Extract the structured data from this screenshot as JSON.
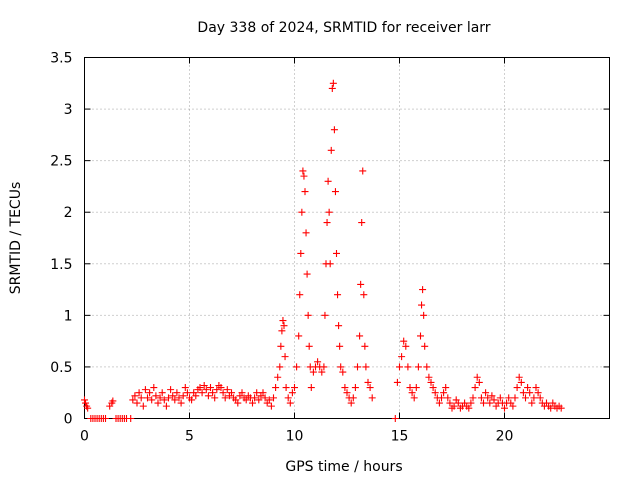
{
  "chart_data": {
    "type": "scatter",
    "title": "Day 338 of 2024, SRMTID for receiver larr",
    "xlabel": "GPS time / hours",
    "ylabel": "SRMTID / TECUs",
    "xlim": [
      0,
      25
    ],
    "ylim": [
      0,
      3.5
    ],
    "xticks": [
      0,
      5,
      10,
      15,
      20
    ],
    "yticks": [
      0,
      0.5,
      1,
      1.5,
      2,
      2.5,
      3,
      3.5
    ],
    "xtick_labels": [
      "0",
      "5",
      "10",
      "15",
      "20"
    ],
    "ytick_labels": [
      "0",
      "0.5",
      "1",
      "1.5",
      "2",
      "2.5",
      "3",
      "3.5"
    ],
    "grid": true,
    "marker": "+",
    "color": "#ff0000",
    "series": [
      {
        "name": "SRMTID",
        "points": [
          [
            0.0,
            0.18
          ],
          [
            0.05,
            0.15
          ],
          [
            0.1,
            0.12
          ],
          [
            0.15,
            0.1
          ],
          [
            0.3,
            0.0
          ],
          [
            0.4,
            0.0
          ],
          [
            0.5,
            0.0
          ],
          [
            0.6,
            0.0
          ],
          [
            0.7,
            0.0
          ],
          [
            0.8,
            0.0
          ],
          [
            0.9,
            0.0
          ],
          [
            1.0,
            0.0
          ],
          [
            1.2,
            0.12
          ],
          [
            1.3,
            0.15
          ],
          [
            1.35,
            0.17
          ],
          [
            1.5,
            0.0
          ],
          [
            1.6,
            0.0
          ],
          [
            1.7,
            0.0
          ],
          [
            1.8,
            0.0
          ],
          [
            1.9,
            0.0
          ],
          [
            2.0,
            0.0
          ],
          [
            2.2,
            0.0
          ],
          [
            2.3,
            0.18
          ],
          [
            2.4,
            0.22
          ],
          [
            2.5,
            0.15
          ],
          [
            2.6,
            0.25
          ],
          [
            2.7,
            0.2
          ],
          [
            2.8,
            0.12
          ],
          [
            2.9,
            0.28
          ],
          [
            3.0,
            0.2
          ],
          [
            3.1,
            0.25
          ],
          [
            3.2,
            0.18
          ],
          [
            3.3,
            0.3
          ],
          [
            3.4,
            0.22
          ],
          [
            3.5,
            0.15
          ],
          [
            3.6,
            0.2
          ],
          [
            3.7,
            0.25
          ],
          [
            3.8,
            0.18
          ],
          [
            3.9,
            0.12
          ],
          [
            4.0,
            0.2
          ],
          [
            4.1,
            0.28
          ],
          [
            4.2,
            0.22
          ],
          [
            4.3,
            0.18
          ],
          [
            4.4,
            0.25
          ],
          [
            4.5,
            0.2
          ],
          [
            4.6,
            0.15
          ],
          [
            4.7,
            0.22
          ],
          [
            4.8,
            0.3
          ],
          [
            4.9,
            0.25
          ],
          [
            5.0,
            0.2
          ],
          [
            5.1,
            0.18
          ],
          [
            5.2,
            0.25
          ],
          [
            5.3,
            0.22
          ],
          [
            5.4,
            0.28
          ],
          [
            5.5,
            0.3
          ],
          [
            5.6,
            0.25
          ],
          [
            5.7,
            0.32
          ],
          [
            5.8,
            0.28
          ],
          [
            5.9,
            0.22
          ],
          [
            6.0,
            0.3
          ],
          [
            6.1,
            0.25
          ],
          [
            6.2,
            0.2
          ],
          [
            6.3,
            0.28
          ],
          [
            6.4,
            0.32
          ],
          [
            6.5,
            0.3
          ],
          [
            6.6,
            0.25
          ],
          [
            6.7,
            0.2
          ],
          [
            6.8,
            0.28
          ],
          [
            6.9,
            0.22
          ],
          [
            7.0,
            0.25
          ],
          [
            7.1,
            0.2
          ],
          [
            7.2,
            0.18
          ],
          [
            7.3,
            0.15
          ],
          [
            7.4,
            0.22
          ],
          [
            7.5,
            0.25
          ],
          [
            7.6,
            0.2
          ],
          [
            7.7,
            0.18
          ],
          [
            7.8,
            0.22
          ],
          [
            7.9,
            0.2
          ],
          [
            8.0,
            0.15
          ],
          [
            8.1,
            0.2
          ],
          [
            8.2,
            0.25
          ],
          [
            8.3,
            0.18
          ],
          [
            8.4,
            0.22
          ],
          [
            8.5,
            0.25
          ],
          [
            8.6,
            0.2
          ],
          [
            8.7,
            0.15
          ],
          [
            8.8,
            0.18
          ],
          [
            8.9,
            0.12
          ],
          [
            9.0,
            0.2
          ],
          [
            9.1,
            0.3
          ],
          [
            9.2,
            0.4
          ],
          [
            9.3,
            0.5
          ],
          [
            9.35,
            0.7
          ],
          [
            9.4,
            0.85
          ],
          [
            9.45,
            0.95
          ],
          [
            9.5,
            0.9
          ],
          [
            9.55,
            0.6
          ],
          [
            9.6,
            0.3
          ],
          [
            9.7,
            0.2
          ],
          [
            9.8,
            0.15
          ],
          [
            9.9,
            0.25
          ],
          [
            10.0,
            0.3
          ],
          [
            10.1,
            0.5
          ],
          [
            10.2,
            0.8
          ],
          [
            10.25,
            1.2
          ],
          [
            10.3,
            1.6
          ],
          [
            10.35,
            2.0
          ],
          [
            10.4,
            2.4
          ],
          [
            10.45,
            2.35
          ],
          [
            10.5,
            2.2
          ],
          [
            10.55,
            1.8
          ],
          [
            10.6,
            1.4
          ],
          [
            10.65,
            1.0
          ],
          [
            10.7,
            0.7
          ],
          [
            10.75,
            0.5
          ],
          [
            10.8,
            0.3
          ],
          [
            10.9,
            0.45
          ],
          [
            11.0,
            0.5
          ],
          [
            11.1,
            0.55
          ],
          [
            11.2,
            0.5
          ],
          [
            11.3,
            0.45
          ],
          [
            11.4,
            0.5
          ],
          [
            11.45,
            1.0
          ],
          [
            11.5,
            1.5
          ],
          [
            11.55,
            1.9
          ],
          [
            11.6,
            2.3
          ],
          [
            11.65,
            2.0
          ],
          [
            11.7,
            1.5
          ],
          [
            11.75,
            2.6
          ],
          [
            11.8,
            3.2
          ],
          [
            11.85,
            3.25
          ],
          [
            11.9,
            2.8
          ],
          [
            11.95,
            2.2
          ],
          [
            12.0,
            1.6
          ],
          [
            12.05,
            1.2
          ],
          [
            12.1,
            0.9
          ],
          [
            12.15,
            0.7
          ],
          [
            12.2,
            0.5
          ],
          [
            12.3,
            0.45
          ],
          [
            12.4,
            0.3
          ],
          [
            12.5,
            0.25
          ],
          [
            12.6,
            0.2
          ],
          [
            12.7,
            0.15
          ],
          [
            12.8,
            0.2
          ],
          [
            12.9,
            0.3
          ],
          [
            13.0,
            0.5
          ],
          [
            13.1,
            0.8
          ],
          [
            13.15,
            1.3
          ],
          [
            13.2,
            1.9
          ],
          [
            13.25,
            2.4
          ],
          [
            13.3,
            1.2
          ],
          [
            13.35,
            0.7
          ],
          [
            13.4,
            0.5
          ],
          [
            13.5,
            0.35
          ],
          [
            13.6,
            0.3
          ],
          [
            13.7,
            0.2
          ],
          [
            14.8,
            0.0
          ],
          [
            14.9,
            0.35
          ],
          [
            15.0,
            0.5
          ],
          [
            15.1,
            0.6
          ],
          [
            15.2,
            0.75
          ],
          [
            15.3,
            0.7
          ],
          [
            15.4,
            0.5
          ],
          [
            15.5,
            0.3
          ],
          [
            15.6,
            0.25
          ],
          [
            15.7,
            0.2
          ],
          [
            15.8,
            0.3
          ],
          [
            15.9,
            0.5
          ],
          [
            16.0,
            0.8
          ],
          [
            16.05,
            1.1
          ],
          [
            16.1,
            1.25
          ],
          [
            16.15,
            1.0
          ],
          [
            16.2,
            0.7
          ],
          [
            16.3,
            0.5
          ],
          [
            16.4,
            0.4
          ],
          [
            16.5,
            0.35
          ],
          [
            16.6,
            0.3
          ],
          [
            16.7,
            0.25
          ],
          [
            16.8,
            0.2
          ],
          [
            16.9,
            0.15
          ],
          [
            17.0,
            0.2
          ],
          [
            17.1,
            0.25
          ],
          [
            17.2,
            0.3
          ],
          [
            17.3,
            0.2
          ],
          [
            17.4,
            0.15
          ],
          [
            17.5,
            0.1
          ],
          [
            17.6,
            0.12
          ],
          [
            17.7,
            0.18
          ],
          [
            17.8,
            0.15
          ],
          [
            17.9,
            0.1
          ],
          [
            18.0,
            0.12
          ],
          [
            18.1,
            0.15
          ],
          [
            18.2,
            0.12
          ],
          [
            18.3,
            0.1
          ],
          [
            18.4,
            0.15
          ],
          [
            18.5,
            0.2
          ],
          [
            18.6,
            0.3
          ],
          [
            18.7,
            0.4
          ],
          [
            18.8,
            0.35
          ],
          [
            18.9,
            0.2
          ],
          [
            19.0,
            0.15
          ],
          [
            19.1,
            0.25
          ],
          [
            19.2,
            0.2
          ],
          [
            19.3,
            0.15
          ],
          [
            19.4,
            0.22
          ],
          [
            19.5,
            0.18
          ],
          [
            19.6,
            0.12
          ],
          [
            19.7,
            0.15
          ],
          [
            19.8,
            0.2
          ],
          [
            19.9,
            0.15
          ],
          [
            20.0,
            0.1
          ],
          [
            20.1,
            0.15
          ],
          [
            20.2,
            0.2
          ],
          [
            20.3,
            0.15
          ],
          [
            20.4,
            0.12
          ],
          [
            20.5,
            0.2
          ],
          [
            20.6,
            0.3
          ],
          [
            20.7,
            0.4
          ],
          [
            20.8,
            0.35
          ],
          [
            20.9,
            0.25
          ],
          [
            21.0,
            0.2
          ],
          [
            21.1,
            0.3
          ],
          [
            21.2,
            0.25
          ],
          [
            21.3,
            0.15
          ],
          [
            21.4,
            0.2
          ],
          [
            21.5,
            0.3
          ],
          [
            21.6,
            0.25
          ],
          [
            21.7,
            0.2
          ],
          [
            21.8,
            0.15
          ],
          [
            21.9,
            0.12
          ],
          [
            22.0,
            0.15
          ],
          [
            22.1,
            0.12
          ],
          [
            22.2,
            0.1
          ],
          [
            22.3,
            0.15
          ],
          [
            22.4,
            0.12
          ],
          [
            22.5,
            0.1
          ],
          [
            22.6,
            0.12
          ],
          [
            22.7,
            0.1
          ]
        ]
      }
    ]
  }
}
